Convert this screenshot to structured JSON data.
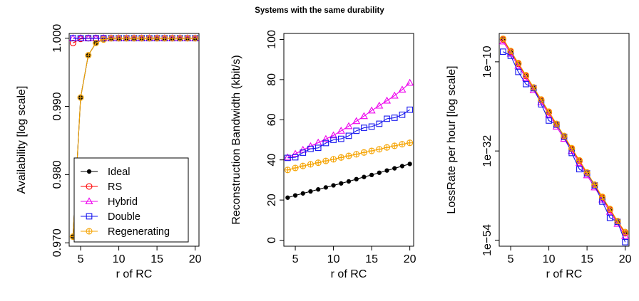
{
  "title": "Systems with the same durability",
  "colors": {
    "Ideal": "#000000",
    "RS": "#ff0000",
    "Hybrid": "#ee00ee",
    "Double": "#1515ee",
    "Regenerating": "#f5a300"
  },
  "chart_data": [
    {
      "type": "line",
      "xlabel": "r of RC",
      "ylabel": "Availability [log scale]",
      "xlim": [
        3.5,
        20.5
      ],
      "ylim": [
        0.9695,
        1.0007
      ],
      "xticks": [
        "5",
        "10",
        "15",
        "20"
      ],
      "yticks": [
        "0.970",
        "0.980",
        "0.990",
        "1.000"
      ],
      "legend_position": "bottom-right",
      "x": [
        4,
        5,
        6,
        7,
        8,
        9,
        10,
        11,
        12,
        13,
        14,
        15,
        16,
        17,
        18,
        19,
        20
      ],
      "series": [
        {
          "name": "Ideal",
          "marker": "dot",
          "values": [
            0.9709,
            0.9913,
            0.9975,
            0.9993,
            0.9998,
            1.0,
            1.0,
            1.0,
            1.0,
            1.0,
            1.0,
            1.0,
            1.0,
            1.0,
            1.0,
            1.0,
            1.0
          ]
        },
        {
          "name": "RS",
          "marker": "circle",
          "values": [
            0.9993,
            0.9999,
            1.0,
            1.0,
            1.0,
            1.0,
            1.0,
            1.0,
            1.0,
            1.0,
            1.0,
            1.0,
            1.0,
            1.0,
            1.0,
            1.0,
            1.0
          ]
        },
        {
          "name": "Hybrid",
          "marker": "triangle",
          "values": [
            1.0,
            1.0,
            1.0,
            1.0,
            1.0,
            1.0,
            1.0,
            1.0,
            1.0,
            1.0,
            1.0,
            1.0,
            1.0,
            1.0,
            1.0,
            1.0,
            1.0
          ]
        },
        {
          "name": "Double",
          "marker": "square",
          "values": [
            1.0,
            1.0,
            1.0,
            1.0,
            1.0,
            1.0,
            1.0,
            1.0,
            1.0,
            1.0,
            1.0,
            1.0,
            1.0,
            1.0,
            1.0,
            1.0,
            1.0
          ]
        },
        {
          "name": "Regenerating",
          "marker": "circleplus",
          "values": [
            0.9709,
            0.9913,
            0.9975,
            0.9993,
            0.9998,
            1.0,
            1.0,
            1.0,
            1.0,
            1.0,
            1.0,
            1.0,
            1.0,
            1.0,
            1.0,
            1.0,
            1.0
          ]
        }
      ]
    },
    {
      "type": "line",
      "xlabel": "r of RC",
      "ylabel": "Reconstruction Bandwidth (kbit/s)",
      "xlim": [
        3.5,
        20.5
      ],
      "ylim": [
        -3,
        103
      ],
      "xticks": [
        "5",
        "10",
        "15",
        "20"
      ],
      "yticks": [
        "0",
        "20",
        "40",
        "60",
        "80",
        "100"
      ],
      "x": [
        4,
        5,
        6,
        7,
        8,
        9,
        10,
        11,
        12,
        13,
        14,
        15,
        16,
        17,
        18,
        19,
        20
      ],
      "series": [
        {
          "name": "Ideal",
          "marker": "dot",
          "values": [
            21.2,
            22.3,
            23.3,
            24.3,
            25.3,
            26.3,
            27.3,
            28.3,
            29.3,
            30.4,
            31.5,
            32.5,
            33.6,
            34.7,
            35.8,
            36.9,
            38.0
          ]
        },
        {
          "name": "Hybrid",
          "marker": "triangle",
          "values": [
            41.2,
            43.0,
            45.0,
            46.8,
            48.6,
            50.4,
            52.2,
            54.5,
            56.8,
            59.3,
            61.8,
            64.6,
            67.0,
            69.5,
            72.0,
            75.0,
            78.4
          ]
        },
        {
          "name": "Double",
          "marker": "square",
          "values": [
            41.0,
            41.3,
            43.6,
            45.5,
            46.0,
            48.4,
            50.0,
            50.5,
            52.0,
            54.5,
            56.0,
            56.6,
            58.0,
            60.5,
            61.0,
            62.5,
            65.0
          ]
        },
        {
          "name": "Regenerating",
          "marker": "circleplus",
          "values": [
            35.0,
            36.0,
            37.0,
            37.8,
            38.6,
            39.5,
            40.3,
            41.2,
            42.0,
            42.8,
            43.7,
            44.5,
            45.3,
            46.2,
            47.0,
            47.8,
            48.5
          ]
        }
      ]
    },
    {
      "type": "line",
      "xlabel": "r of RC",
      "ylabel": "LossRate per hour [log scale]",
      "log_y": true,
      "xlim": [
        3.5,
        20.5
      ],
      "ylim": [
        "1e-55.5",
        "1e-3"
      ],
      "xticks": [
        "5",
        "10",
        "15",
        "20"
      ],
      "yticks": [
        "1e−10",
        "1e−32",
        "1e−54"
      ],
      "x": [
        4,
        5,
        6,
        7,
        8,
        9,
        10,
        11,
        12,
        13,
        14,
        15,
        16,
        17,
        18,
        19,
        20
      ],
      "series": [
        {
          "name": "Ideal",
          "marker": "dot",
          "values": [
            "1e-4.5",
            "1e-7.5",
            "1e-10.5",
            "1e-13.5",
            "1e-16.5",
            "1e-19.5",
            "1e-22.5",
            "1e-25.5",
            "1e-28.5",
            "1e-31.5",
            "1e-34.5",
            "1e-37.5",
            "1e-40.5",
            "1e-43.5",
            "1e-46.5",
            "1e-49.5",
            "1e-52.3"
          ]
        },
        {
          "name": "RS",
          "marker": "circle",
          "values": [
            "1e-4.5",
            "1e-7.5",
            "1e-10.5",
            "1e-13.5",
            "1e-16.5",
            "1e-19.5",
            "1e-22.5",
            "1e-25.5",
            "1e-28.5",
            "1e-31.5",
            "1e-34.5",
            "1e-37.5",
            "1e-40.5",
            "1e-43.5",
            "1e-46.5",
            "1e-49.5",
            "1e-52.3"
          ]
        },
        {
          "name": "Hybrid",
          "marker": "triangle",
          "values": [
            "1e-5",
            "1e-8",
            "1e-11",
            "1e-14",
            "1e-17",
            "1e-20",
            "1e-23",
            "1e-26",
            "1e-29",
            "1e-32",
            "1e-35",
            "1e-38",
            "1e-41",
            "1e-44",
            "1e-47",
            "1e-50",
            "1e-53"
          ]
        },
        {
          "name": "Double",
          "marker": "square",
          "values": [
            "1e-7.5",
            "1e-8.5",
            "1e-12.5",
            "1e-15.5",
            "1e-16.5",
            "1e-20.5",
            "1e-24.5",
            "1e-25.5",
            "1e-28.5",
            "1e-32.5",
            "1e-36.5",
            "1e-37.5",
            "1e-40.5",
            "1e-44.5",
            "1e-48.5",
            "1e-49.5",
            "1e-54.5"
          ]
        },
        {
          "name": "Regenerating",
          "marker": "circleplus",
          "values": [
            "1e-4.3",
            "1e-7.3",
            "1e-10.3",
            "1e-13.3",
            "1e-16.3",
            "1e-19.3",
            "1e-22.3",
            "1e-25.3",
            "1e-28.3",
            "1e-31.3",
            "1e-34.3",
            "1e-37.3",
            "1e-40.3",
            "1e-43.3",
            "1e-46.3",
            "1e-49.3",
            "1e-52.0"
          ]
        }
      ]
    }
  ]
}
